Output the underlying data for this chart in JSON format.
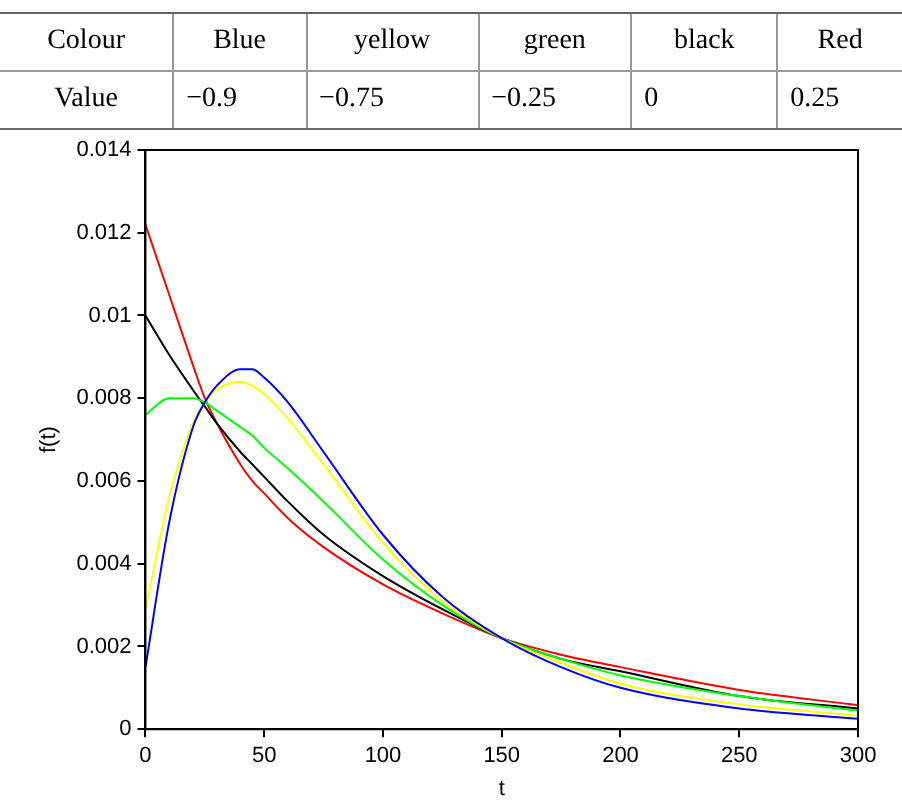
{
  "chart_data": {
    "type": "line",
    "xlabel": "t",
    "ylabel": "f(t)",
    "annotations": [
      "Colour",
      "Blue",
      "yellow",
      "green",
      "black",
      "Red",
      "Value",
      "−0.9",
      "−0.75",
      "−0.25",
      "0",
      "0.25"
    ],
    "x": [
      0,
      10,
      20,
      25,
      30,
      40,
      45,
      50,
      60,
      75,
      100,
      125,
      150,
      175,
      200,
      250,
      300
    ],
    "series": [
      {
        "color": "#0000ff",
        "values": [
          0.0015,
          0.005,
          0.0073,
          0.0079,
          0.0083,
          0.0087,
          0.0087,
          0.0085,
          0.0079,
          0.0067,
          0.0047,
          0.0032,
          0.0022,
          0.0015,
          0.001,
          0.0005,
          0.00025
        ]
      },
      {
        "color": "#ffff00",
        "values": [
          0.0029,
          0.0056,
          0.0074,
          0.0079,
          0.0082,
          0.0084,
          0.0083,
          0.0081,
          0.0075,
          0.0064,
          0.0045,
          0.0031,
          0.0022,
          0.0016,
          0.0011,
          0.0006,
          0.00033
        ]
      },
      {
        "color": "#00ff00",
        "values": [
          0.0076,
          0.008,
          0.008,
          0.0079,
          0.0077,
          0.0073,
          0.0071,
          0.0068,
          0.0063,
          0.0055,
          0.0041,
          0.003,
          0.0022,
          0.0017,
          0.0013,
          0.0008,
          0.00045
        ]
      },
      {
        "color": "#000000",
        "values": [
          0.01,
          0.00905,
          0.0082,
          0.0078,
          0.0074,
          0.0067,
          0.0064,
          0.0061,
          0.0055,
          0.0047,
          0.0037,
          0.0029,
          0.0022,
          0.0017,
          0.0014,
          0.0008,
          0.0005
        ]
      },
      {
        "color": "#ff0000",
        "values": [
          0.0122,
          0.0105,
          0.0088,
          0.008,
          0.0074,
          0.0064,
          0.006,
          0.0057,
          0.0051,
          0.0044,
          0.0035,
          0.0028,
          0.0022,
          0.0018,
          0.0015,
          0.00095,
          0.00058
        ]
      }
    ],
    "xlim": [
      0,
      300
    ],
    "xticks": [
      0,
      50,
      100,
      150,
      200,
      250,
      300
    ],
    "ylim": [
      0,
      0.014
    ],
    "yticks": [
      0,
      0.002,
      0.004,
      0.006,
      0.008,
      0.01,
      0.012,
      0.014
    ],
    "grid": false,
    "legend": false,
    "marker": "none",
    "line_style": "solid"
  }
}
